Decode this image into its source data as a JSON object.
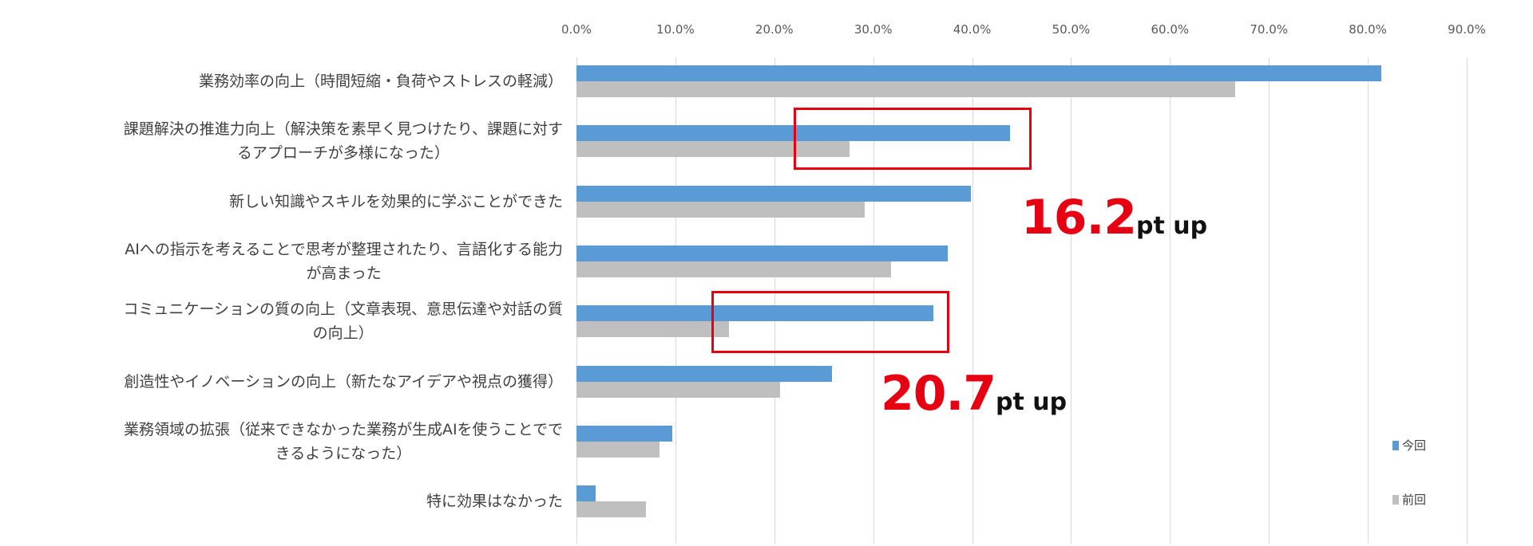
{
  "chart_data": {
    "type": "bar",
    "orientation": "horizontal",
    "xlim": [
      0,
      90
    ],
    "x_ticks": [
      "0.0%",
      "10.0%",
      "20.0%",
      "30.0%",
      "40.0%",
      "50.0%",
      "60.0%",
      "70.0%",
      "80.0%",
      "90.0%"
    ],
    "grid": true,
    "legend_placement": "bottom-right",
    "categories": [
      [
        "業務効率の向上（時間短縮・負荷やストレスの軽減）"
      ],
      [
        "課題解決の推進力向上（解決策を素早く見つけたり、課題に対す",
        "るアプローチが多様になった）"
      ],
      [
        "新しい知識やスキルを効果的に学ぶことができた"
      ],
      [
        "AIへの指示を考えることで思考が整理されたり、言語化する能力",
        "が高まった"
      ],
      [
        "コミュニケーションの質の向上（文章表現、意思伝達や対話の質",
        "の向上）"
      ],
      [
        "創造性やイノベーションの向上（新たなアイデアや視点の獲得）"
      ],
      [
        "業務領域の拡張（従来できなかった業務が生成AIを使うことでで",
        "きるようになった）"
      ],
      [
        "特に効果はなかった"
      ]
    ],
    "series": [
      {
        "name": "今回",
        "color": "#5b9bd5",
        "values": [
          81.4,
          43.8,
          39.9,
          37.5,
          36.1,
          25.8,
          9.7,
          1.9
        ]
      },
      {
        "name": "前回",
        "color": "#bfbfbf",
        "values": [
          66.6,
          27.6,
          29.1,
          31.8,
          15.4,
          20.6,
          8.4,
          7.0
        ]
      }
    ],
    "annotations": [
      {
        "number": "16.2",
        "unit": "pt up",
        "category_index": 1,
        "color": "#e60012"
      },
      {
        "number": "20.7",
        "unit": "pt up",
        "category_index": 4,
        "color": "#e60012"
      }
    ]
  }
}
